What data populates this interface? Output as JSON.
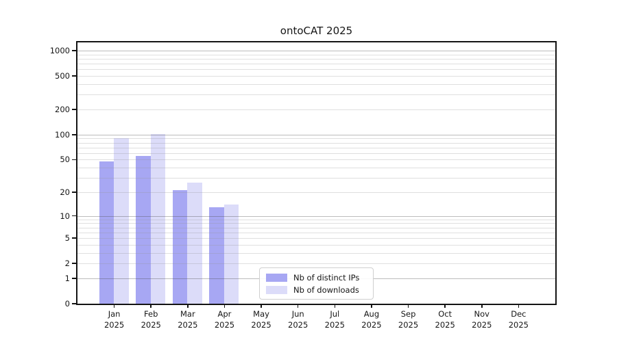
{
  "title": "ontoCAT 2025",
  "chart_data": {
    "type": "bar",
    "title": "ontoCAT 2025",
    "categories": [
      "Jan 2025",
      "Feb 2025",
      "Mar 2025",
      "Apr 2025",
      "May 2025",
      "Jun 2025",
      "Jul 2025",
      "Aug 2025",
      "Sep 2025",
      "Oct 2025",
      "Nov 2025",
      "Dec 2025"
    ],
    "series": [
      {
        "name": "Nb of distinct IPs",
        "color": "#a7a7f3",
        "values": [
          48,
          55,
          21,
          13,
          0,
          0,
          0,
          0,
          0,
          0,
          0,
          0
        ]
      },
      {
        "name": "Nb of downloads",
        "color": "#dcdcf9",
        "values": [
          90,
          102,
          26,
          14,
          0,
          0,
          0,
          0,
          0,
          0,
          0,
          0
        ]
      }
    ],
    "xlabel": "",
    "ylabel": "",
    "yscale": "log1p",
    "ylim": [
      0,
      1250
    ],
    "yticks": [
      0,
      1,
      2,
      5,
      10,
      20,
      50,
      100,
      200,
      500,
      1000
    ],
    "major_gridlines": [
      1,
      10,
      100,
      1000
    ],
    "minor_gridline_decades": [
      1,
      10,
      100
    ],
    "grid": "on",
    "legend": {
      "position": "lower-center-inside",
      "entries": [
        "Nb of distinct IPs",
        "Nb of downloads"
      ]
    }
  }
}
